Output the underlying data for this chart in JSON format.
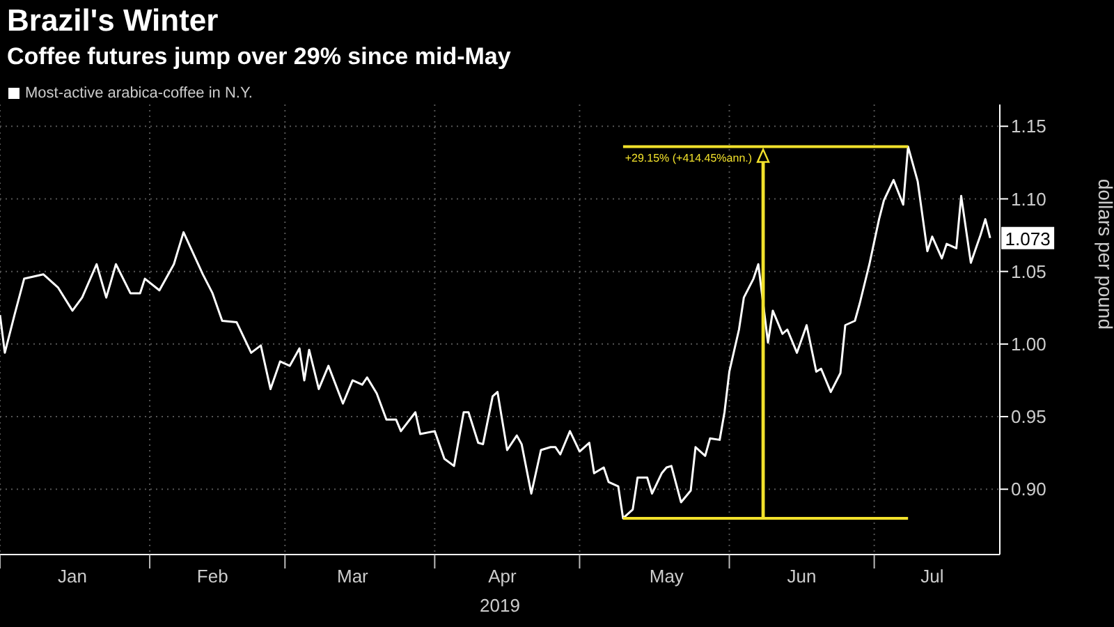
{
  "chart_data": {
    "type": "line",
    "title": "Brazil's Winter",
    "subtitle": "Coffee futures jump over 29% since mid-May",
    "xlabel": "2019",
    "ylabel": "dollars per pound",
    "legend": "top left",
    "grid": true,
    "x": [
      "2019-01-01",
      "2019-01-02",
      "2019-01-04",
      "2019-01-06",
      "2019-01-10",
      "2019-01-13",
      "2019-01-16",
      "2019-01-18",
      "2019-01-21",
      "2019-01-23",
      "2019-01-25",
      "2019-01-28",
      "2019-01-30",
      "2019-01-31",
      "2019-02-03",
      "2019-02-06",
      "2019-02-08",
      "2019-02-12",
      "2019-02-14",
      "2019-02-16",
      "2019-02-19",
      "2019-02-22",
      "2019-02-24",
      "2019-02-26",
      "2019-02-28",
      "2019-03-02",
      "2019-03-04",
      "2019-03-05",
      "2019-03-06",
      "2019-03-08",
      "2019-03-10",
      "2019-03-13",
      "2019-03-15",
      "2019-03-17",
      "2019-03-18",
      "2019-03-20",
      "2019-03-22",
      "2019-03-24",
      "2019-03-25",
      "2019-03-28",
      "2019-03-29",
      "2019-04-01",
      "2019-04-03",
      "2019-04-05",
      "2019-04-07",
      "2019-04-08",
      "2019-04-10",
      "2019-04-11",
      "2019-04-13",
      "2019-04-14",
      "2019-04-16",
      "2019-04-18",
      "2019-04-19",
      "2019-04-21",
      "2019-04-23",
      "2019-04-25",
      "2019-04-26",
      "2019-04-27",
      "2019-04-28",
      "2019-04-29",
      "2019-05-01",
      "2019-05-03",
      "2019-05-04",
      "2019-05-06",
      "2019-05-07",
      "2019-05-09",
      "2019-05-10",
      "2019-05-12",
      "2019-05-13",
      "2019-05-15",
      "2019-05-16",
      "2019-05-18",
      "2019-05-19",
      "2019-05-20",
      "2019-05-22",
      "2019-05-24",
      "2019-05-25",
      "2019-05-27",
      "2019-05-28",
      "2019-05-30",
      "2019-05-31",
      "2019-06-01",
      "2019-06-03",
      "2019-06-04",
      "2019-06-06",
      "2019-06-07",
      "2019-06-09",
      "2019-06-10",
      "2019-06-12",
      "2019-06-13",
      "2019-06-15",
      "2019-06-17",
      "2019-06-19",
      "2019-06-20",
      "2019-06-22",
      "2019-06-24",
      "2019-06-25",
      "2019-06-27",
      "2019-06-28",
      "2019-06-30",
      "2019-07-02",
      "2019-07-03",
      "2019-07-05",
      "2019-07-07",
      "2019-07-08",
      "2019-07-10",
      "2019-07-12",
      "2019-07-13",
      "2019-07-15",
      "2019-07-16",
      "2019-07-18",
      "2019-07-19",
      "2019-07-21",
      "2019-07-23",
      "2019-07-24",
      "2019-07-25"
    ],
    "series": [
      {
        "name": "Most-active arabica-coffee in N.Y.",
        "color": "#ffffff",
        "values": [
          1.02,
          0.994,
          1.02,
          1.045,
          1.048,
          1.039,
          1.023,
          1.032,
          1.055,
          1.032,
          1.055,
          1.035,
          1.035,
          1.045,
          1.037,
          1.055,
          1.077,
          1.048,
          1.035,
          1.016,
          1.015,
          0.994,
          0.999,
          0.969,
          0.988,
          0.985,
          0.997,
          0.975,
          0.996,
          0.969,
          0.985,
          0.959,
          0.975,
          0.972,
          0.977,
          0.966,
          0.948,
          0.948,
          0.94,
          0.953,
          0.938,
          0.94,
          0.921,
          0.916,
          0.953,
          0.953,
          0.932,
          0.931,
          0.964,
          0.967,
          0.927,
          0.937,
          0.931,
          0.897,
          0.927,
          0.929,
          0.929,
          0.924,
          0.932,
          0.94,
          0.926,
          0.932,
          0.911,
          0.915,
          0.905,
          0.902,
          0.88,
          0.886,
          0.908,
          0.908,
          0.897,
          0.911,
          0.915,
          0.916,
          0.891,
          0.899,
          0.929,
          0.923,
          0.935,
          0.934,
          0.953,
          0.981,
          1.01,
          1.032,
          1.045,
          1.055,
          1.001,
          1.023,
          1.007,
          1.01,
          0.994,
          1.013,
          0.981,
          0.983,
          0.967,
          0.98,
          1.013,
          1.016,
          1.028,
          1.055,
          1.086,
          1.099,
          1.113,
          1.096,
          1.136,
          1.112,
          1.064,
          1.074,
          1.059,
          1.069,
          1.066,
          1.102,
          1.056,
          1.075,
          1.086,
          1.073
        ]
      },
      {
        "type": "line",
        "color": "#f2e12b",
        "x": [
          "2019-05-10",
          "2019-07-08"
        ],
        "values": [
          0.88,
          0.88
        ]
      },
      {
        "type": "line",
        "color": "#f2e12b",
        "x": [
          "2019-05-10",
          "2019-07-08"
        ],
        "values": [
          1.136,
          1.136
        ]
      }
    ],
    "xlim": [
      "2019-01-01",
      "2019-07-27"
    ],
    "xticks": [
      {
        "value": "2019-01-01",
        "label": null
      },
      {
        "value": "2019-01-16",
        "label": "Jan"
      },
      {
        "value": "2019-02-01",
        "label": null
      },
      {
        "value": "2019-02-14",
        "label": "Feb"
      },
      {
        "value": "2019-03-01",
        "label": null
      },
      {
        "value": "2019-03-15",
        "label": "Mar"
      },
      {
        "value": "2019-04-01",
        "label": null
      },
      {
        "value": "2019-04-15",
        "label": "Apr"
      },
      {
        "value": "2019-05-01",
        "label": null
      },
      {
        "value": "2019-05-19",
        "label": "May"
      },
      {
        "value": "2019-06-01",
        "label": null
      },
      {
        "value": "2019-06-16",
        "label": "Jun"
      },
      {
        "value": "2019-07-01",
        "label": null
      },
      {
        "value": "2019-07-13",
        "label": "Jul"
      }
    ],
    "ylim": [
      0.855,
      1.165
    ],
    "yticks": [
      {
        "value": 0.9,
        "label": "0.90"
      },
      0.95,
      {
        "value": 1,
        "label": "1.00"
      },
      1.05,
      {
        "value": 1.1,
        "label": "1.10"
      },
      1.15
    ],
    "annotations": [
      {
        "text": "+29.15% (+414.45%ann.)",
        "x": "2019-06-08",
        "y": 1.136
      },
      {
        "text": "1.073",
        "x": "2019-07-25",
        "y": 1.073
      }
    ]
  }
}
